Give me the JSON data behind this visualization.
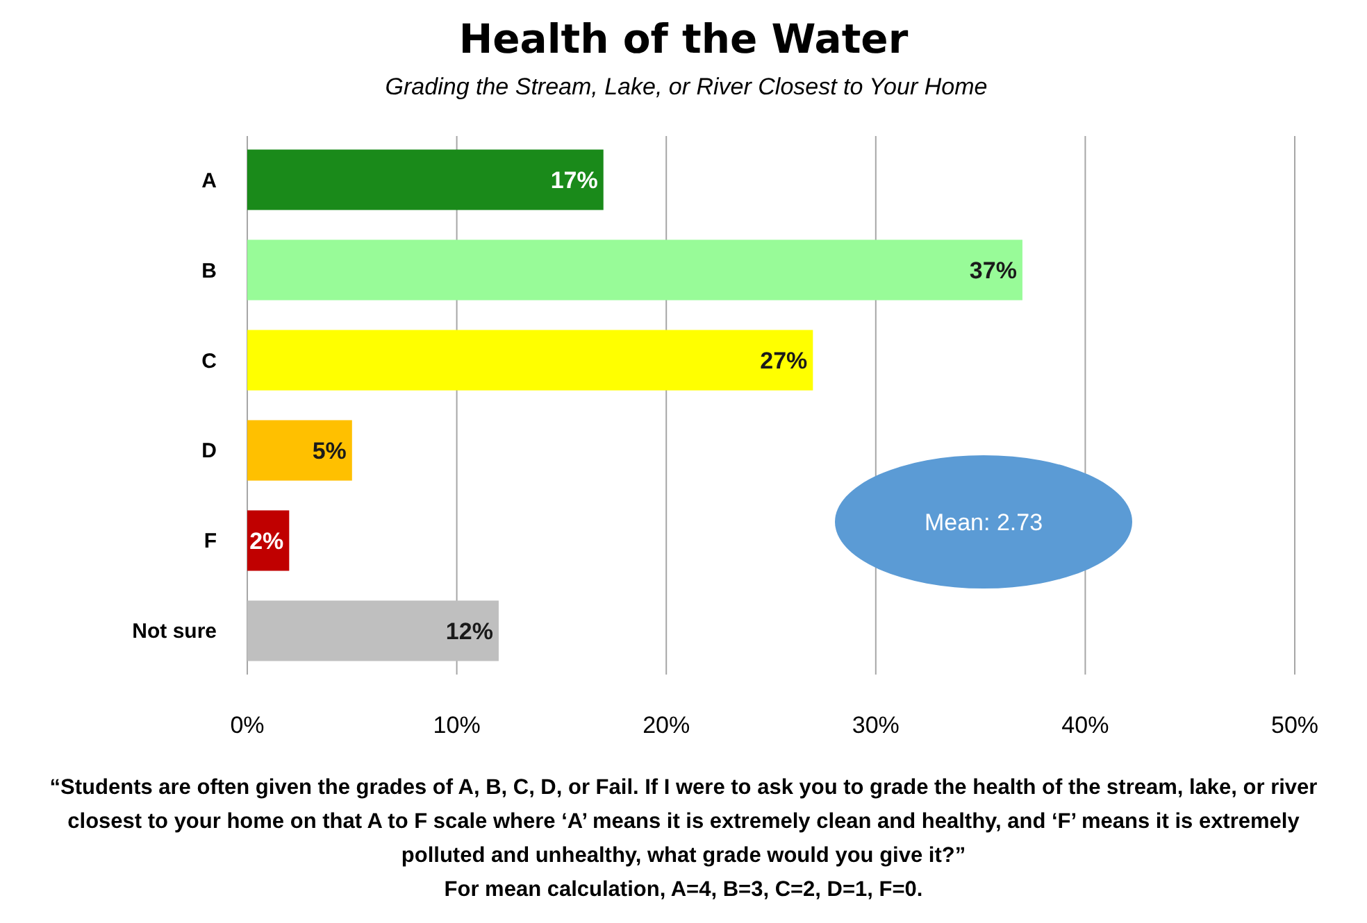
{
  "chart_data": {
    "type": "bar",
    "orientation": "horizontal",
    "title": "Health of the Water",
    "subtitle": "Grading the Stream, Lake, or River Closest to Your Home",
    "categories": [
      "A",
      "B",
      "C",
      "D",
      "F",
      "Not sure"
    ],
    "values": [
      17,
      37,
      27,
      5,
      2,
      12
    ],
    "colors": [
      "#1a8a1a",
      "#98fb98",
      "#ffff00",
      "#ffc000",
      "#c00000",
      "#bfbfbf"
    ],
    "value_labels": [
      "17%",
      "37%",
      "27%",
      "5%",
      "2%",
      "12%"
    ],
    "xlim": [
      0,
      50
    ],
    "xticks": [
      {
        "value": 0,
        "label": "0%"
      },
      {
        "value": 10,
        "label": "10%"
      },
      {
        "value": 20,
        "label": "20%"
      },
      {
        "value": 30,
        "label": "30%"
      },
      {
        "value": 40,
        "label": "40%"
      },
      {
        "value": 50,
        "label": "50%"
      }
    ],
    "grid": "x",
    "annotations": [
      "Mean: 2.73",
      "“Students are often given the grades of A, B, C, D, or Fail.  If I were to ask you to grade the health of the stream, lake, or river closest to your home on that A to F scale where ‘A’ means it is extremely clean and healthy, and ‘F’ means it is extremely polluted and unhealthy, what grade would you give it?”",
      "For mean calculation,  A=4, B=3, C=2, D=1, F=0."
    ]
  }
}
